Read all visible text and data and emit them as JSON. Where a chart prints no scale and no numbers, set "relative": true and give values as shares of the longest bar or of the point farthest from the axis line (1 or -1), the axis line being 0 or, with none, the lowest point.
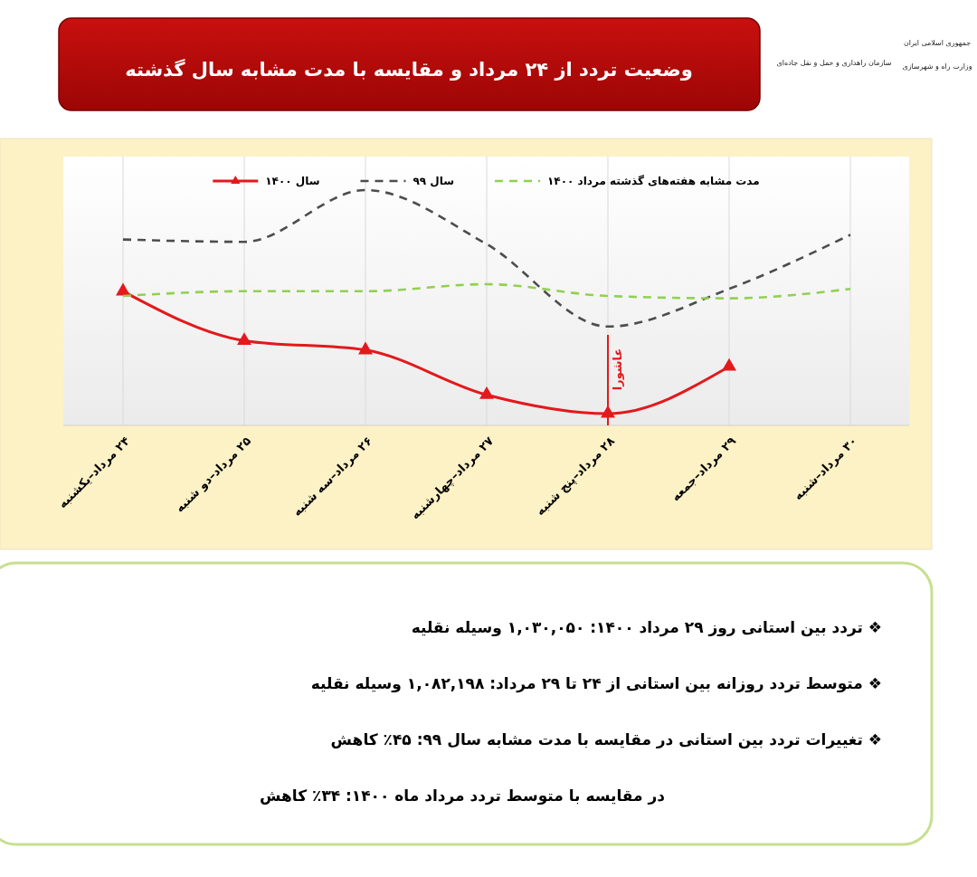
{
  "chart_data": {
    "type": "line",
    "title": "وضعیت تردد از ۲۴ مرداد و مقایسه با مدت مشابه سال گذشته",
    "categories": [
      "۲۴ مرداد–یکشنبه",
      "۲۵ مرداد–دو شنبه",
      "۲۶ مرداد–سه شنبه",
      "۲۷ مرداد–چهارشنبه",
      "۲۸ مرداد–پنج شنبه",
      "۲۹ مرداد–جمعه",
      "۳۰ مرداد–شنبه"
    ],
    "relative": true,
    "series": [
      {
        "name": "سال ۱۴۰۰",
        "color": "#e3191c",
        "values": [
          0.57,
          0.36,
          0.32,
          0.13,
          0.05,
          0.25,
          null
        ],
        "marker": "triangle",
        "line_style": "solid"
      },
      {
        "name": "سال ۹۹",
        "color": "#4d4d4d",
        "values": [
          0.79,
          0.78,
          1,
          0.77,
          0.42,
          0.58,
          0.81
        ],
        "marker": "none",
        "line_style": "dashed"
      },
      {
        "name": "مدت مشابه هفته‌های گذشته مرداد ۱۴۰۰",
        "color": "#92d050",
        "values": [
          0.55,
          0.57,
          0.57,
          0.6,
          0.55,
          0.54,
          0.58
        ],
        "marker": "none",
        "line_style": "dashed"
      }
    ],
    "grid": "x",
    "legend": "top",
    "ref_lines": [
      {
        "axis": "x",
        "value": "۲۸ مرداد–پنج شنبه",
        "label": "عاشورا",
        "color": "#e3191c"
      }
    ],
    "annotations": [
      "❖ تردد بین استانی روز ۲۹ مرداد ۱۴۰۰: ۱,۰۳۰,۰۵۰ وسیله نقلیه",
      "❖ متوسط تردد روزانه بین استانی از ۲۴ تا ۲۹ مرداد: ۱,۰۸۲,۱۹۸ وسیله نقلیه",
      "❖ تغییرات تردد بین استانی در مقایسه با مدت مشابه سال ۹۹: ۴۵٪ کاهش",
      "در مقایسه با متوسط تردد مرداد ماه ۱۴۰۰: ۳۴٪ کاهش",
      "جمهوری اسلامی ایران",
      "وزارت راه و شهرسازی",
      "سازمان راهداری و حمل و نقل جاده‌ای"
    ]
  }
}
